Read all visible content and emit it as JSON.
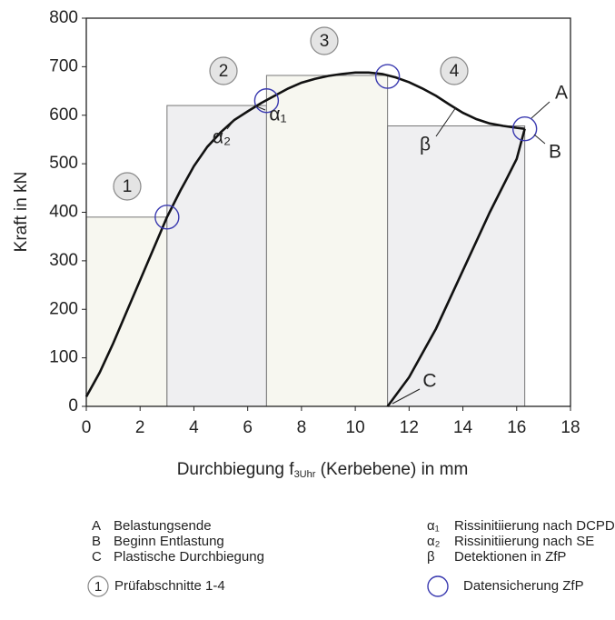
{
  "chart_data": {
    "type": "line",
    "xlabel": {
      "main": "Durchbiegung f",
      "sub": "3Uhr",
      "rest": " (Kerbebene) in mm"
    },
    "ylabel": "Kraft in kN",
    "xlim": [
      0,
      18
    ],
    "xticks": [
      0,
      2,
      4,
      6,
      8,
      10,
      12,
      14,
      16,
      18
    ],
    "ylim": [
      0,
      800
    ],
    "yticks": [
      0,
      100,
      200,
      300,
      400,
      500,
      600,
      700,
      800
    ],
    "series": [
      {
        "color": "#111111",
        "x": [
          0,
          0.5,
          1,
          1.5,
          2,
          2.5,
          3,
          3.5,
          4,
          4.5,
          5,
          5.5,
          6,
          6.5,
          7,
          7.5,
          8,
          8.5,
          9,
          9.5,
          10,
          10.5,
          11,
          11.5,
          12,
          12.5,
          13,
          13.5,
          14,
          14.5,
          15,
          15.5,
          16,
          16.3
        ],
        "y": [
          20,
          70,
          130,
          195,
          260,
          325,
          390,
          445,
          495,
          535,
          565,
          590,
          608,
          625,
          640,
          655,
          667,
          675,
          681,
          685,
          688,
          688,
          685,
          678,
          668,
          655,
          640,
          622,
          605,
          592,
          583,
          578,
          574,
          572
        ]
      },
      {
        "color": "#111111",
        "x": [
          11.2,
          12,
          13,
          14,
          15,
          16,
          16.3
        ],
        "y": [
          0,
          60,
          160,
          280,
          400,
          510,
          572
        ]
      }
    ],
    "sections": [
      {
        "label": "1",
        "x0": 0,
        "x1": 3.0,
        "y": 390,
        "color": "#f7f7f0"
      },
      {
        "label": "2",
        "x0": 3.0,
        "x1": 6.7,
        "y": 620,
        "color": "#efeff1"
      },
      {
        "label": "3",
        "x0": 6.7,
        "x1": 11.2,
        "y": 682,
        "color": "#f7f7f0"
      },
      {
        "label": "4",
        "x0": 11.2,
        "x1": 16.3,
        "y": 578,
        "color": "#efeff1"
      }
    ],
    "saves": {
      "color": "#3a3ab0",
      "x": [
        3.0,
        6.7,
        11.2,
        16.3
      ],
      "y": [
        390,
        630,
        680,
        572
      ]
    },
    "annotations": [
      "A",
      "B",
      "C",
      "α₁",
      "α₂",
      "β"
    ],
    "legend": {
      "left": [
        [
          "A",
          "Belastungsende"
        ],
        [
          "B",
          "Beginn Entlastung"
        ],
        [
          "C",
          "Plastische Durchbiegung"
        ]
      ],
      "right": [
        [
          "α₁",
          "Rissinitiierung nach DCPD"
        ],
        [
          "α₂",
          "Rissinitiierung nach SE"
        ],
        [
          "β",
          "Detektionen in ZfP"
        ]
      ],
      "section_symbol": "1",
      "section_text": "Prüfabschnitte 1-4",
      "save_text": "Datensicherung ZfP"
    }
  }
}
